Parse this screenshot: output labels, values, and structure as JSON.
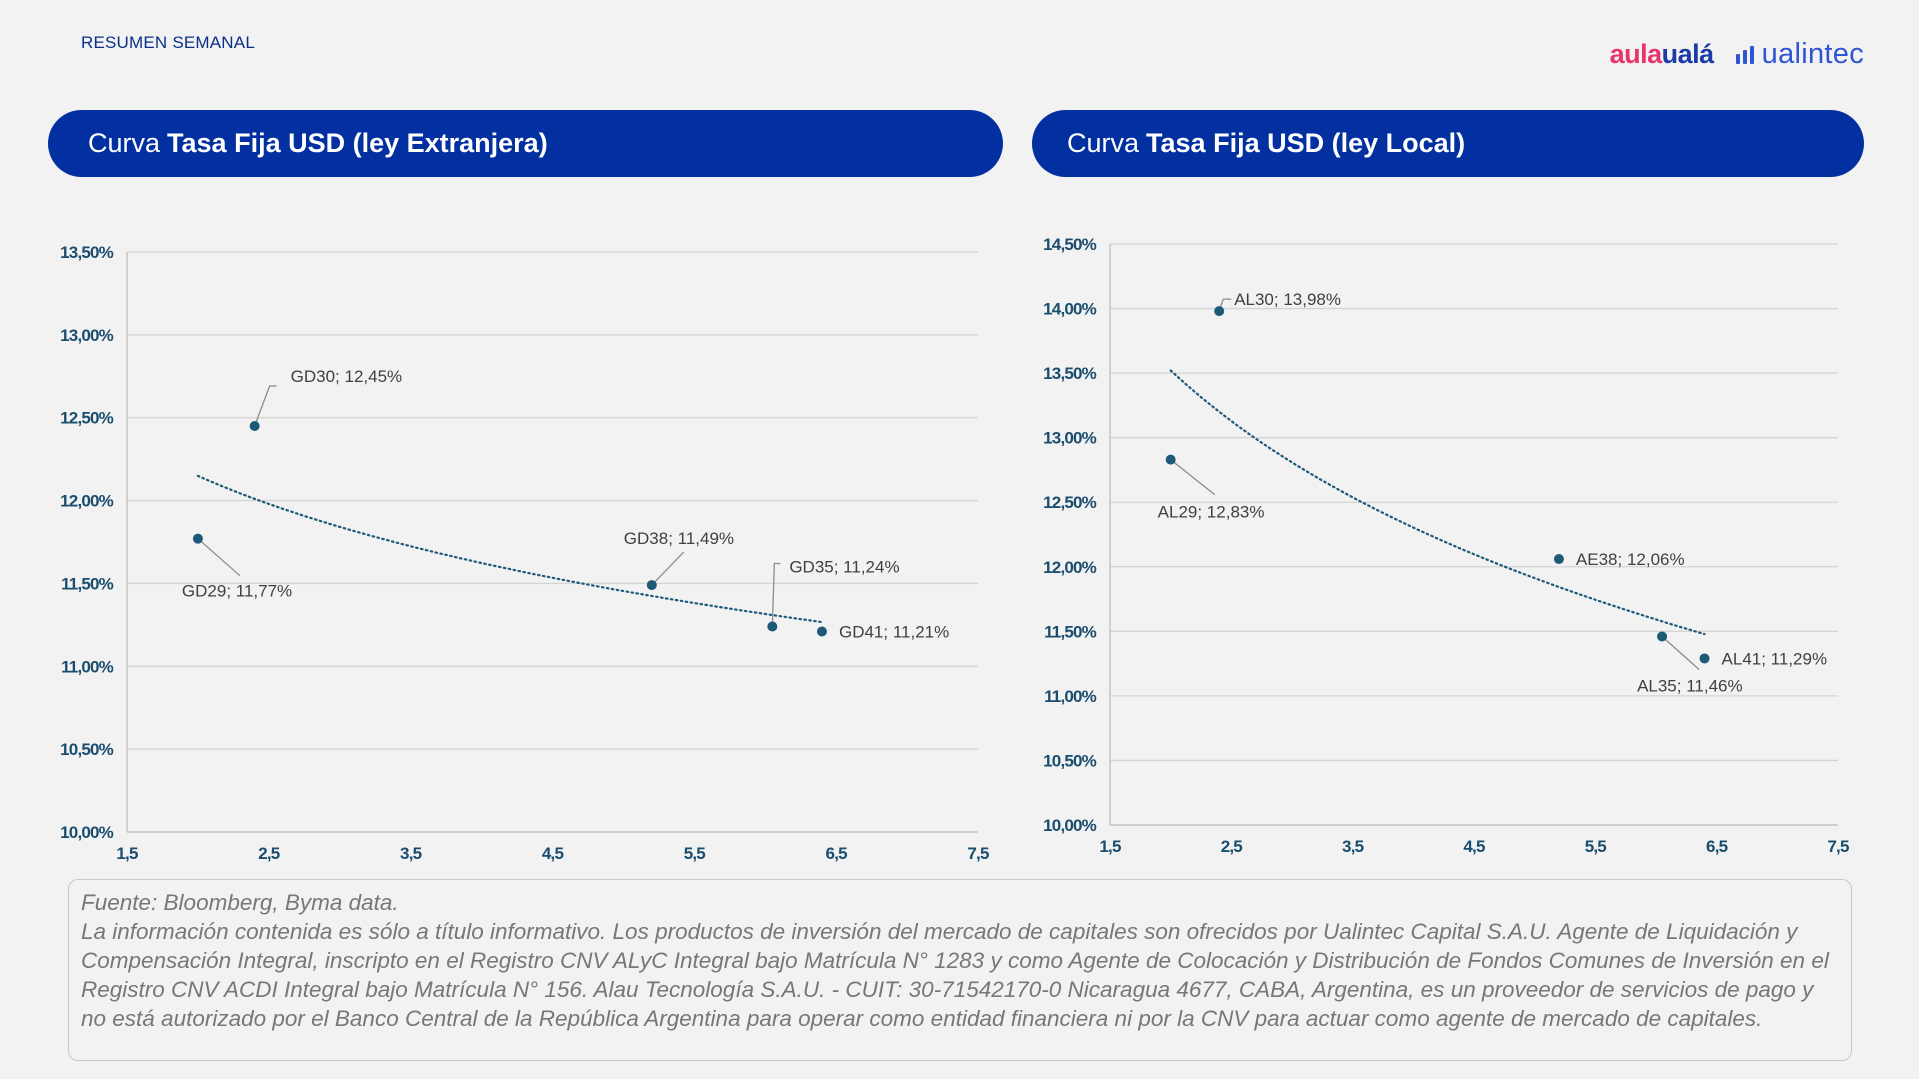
{
  "header": {
    "label": "RESUMEN SEMANAL",
    "logo_aula_part1": "aula",
    "logo_aula_part2": "ualá",
    "logo_ualintec": "ualintec"
  },
  "panels": {
    "left_title_prefix": "Curva",
    "left_title_bold": "Tasa Fija USD (ley Extranjera)",
    "right_title_prefix": "Curva",
    "right_title_bold": "Tasa Fija USD (ley Local)"
  },
  "footer": {
    "source": "Fuente: Bloomberg, Byma data.",
    "disclaimer": "La información contenida es sólo a título informativo. Los productos de inversión del mercado de capitales son ofrecidos por Ualintec Capital S.A.U. Agente de Liquidación y Compensación Integral, inscripto en el Registro CNV ALyC Integral bajo Matrícula N° 1283 y como Agente de Colocación y Distribución de Fondos Comunes de Inversión en el Registro CNV ACDI Integral bajo Matrícula N° 156. Alau Tecnología S.A.U. - CUIT: 30-71542170-0 Nicaragua 4677, CABA, Argentina, es un proveedor de servicios de pago y no está autorizado por el Banco Central de la República Argentina para operar como entidad financiera ni por la CNV para actuar como agente de mercado de capitales."
  },
  "colors": {
    "brand_blue": "#0330a0",
    "point": "#1e5a78",
    "trend": "#1e5a78",
    "axis_label": "#1a4d6e"
  },
  "chart_data": [
    {
      "type": "scatter",
      "xlim": [
        1.5,
        7.5
      ],
      "ylim": [
        10.0,
        13.5
      ],
      "x_ticks": [
        1.5,
        2.5,
        3.5,
        4.5,
        5.5,
        6.5,
        7.5
      ],
      "x_tick_labels": [
        "1,5",
        "2,5",
        "3,5",
        "4,5",
        "5,5",
        "6,5",
        "7,5"
      ],
      "y_ticks": [
        10.0,
        10.5,
        11.0,
        11.5,
        12.0,
        12.5,
        13.0,
        13.5
      ],
      "y_tick_labels": [
        "10,00%",
        "10,50%",
        "11,00%",
        "11,50%",
        "12,00%",
        "12,50%",
        "13,00%",
        "13,50%"
      ],
      "grid": true,
      "trendline": "logarithmic dotted",
      "points": [
        {
          "x": 2.0,
          "y": 11.77,
          "label": "GD29; 11,77%"
        },
        {
          "x": 2.4,
          "y": 12.45,
          "label": "GD30; 12,45%"
        },
        {
          "x": 5.2,
          "y": 11.49,
          "label": "GD38; 11,49%"
        },
        {
          "x": 6.05,
          "y": 11.24,
          "label": "GD35; 11,24%"
        },
        {
          "x": 6.4,
          "y": 11.21,
          "label": "GD41; 11,21%"
        }
      ]
    },
    {
      "type": "scatter",
      "xlim": [
        1.5,
        7.5
      ],
      "ylim": [
        10.0,
        14.5
      ],
      "x_ticks": [
        1.5,
        2.5,
        3.5,
        4.5,
        5.5,
        6.5,
        7.5
      ],
      "x_tick_labels": [
        "1,5",
        "2,5",
        "3,5",
        "4,5",
        "5,5",
        "6,5",
        "7,5"
      ],
      "y_ticks": [
        10.0,
        10.5,
        11.0,
        11.5,
        12.0,
        12.5,
        13.0,
        13.5,
        14.0,
        14.5
      ],
      "y_tick_labels": [
        "10,00%",
        "10,50%",
        "11,00%",
        "11,50%",
        "12,00%",
        "12,50%",
        "13,00%",
        "13,50%",
        "14,00%",
        "14,50%"
      ],
      "grid": true,
      "trendline": "logarithmic dotted",
      "points": [
        {
          "x": 2.0,
          "y": 12.83,
          "label": "AL29; 12,83%"
        },
        {
          "x": 2.4,
          "y": 13.98,
          "label": "AL30; 13,98%"
        },
        {
          "x": 5.2,
          "y": 12.06,
          "label": "AE38; 12,06%"
        },
        {
          "x": 6.05,
          "y": 11.46,
          "label": "AL35; 11,46%"
        },
        {
          "x": 6.4,
          "y": 11.29,
          "label": "AL41; 11,29%"
        }
      ]
    }
  ]
}
